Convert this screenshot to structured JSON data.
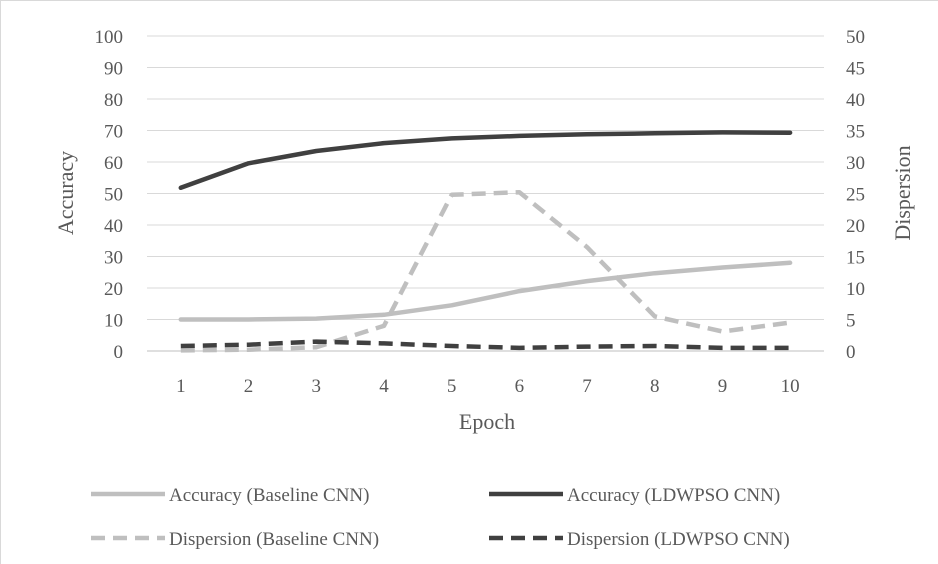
{
  "chart_data": {
    "type": "line",
    "title": "",
    "xlabel": "Epoch",
    "ylabel": "Accuracy",
    "y2label": "Dispersion",
    "x": [
      1,
      2,
      3,
      4,
      5,
      6,
      7,
      8,
      9,
      10
    ],
    "x_tick_labels": [
      "1",
      "2",
      "3",
      "4",
      "5",
      "6",
      "7",
      "8",
      "9",
      "10"
    ],
    "ylim": [
      0,
      100
    ],
    "y_ticks": [
      "0",
      "10",
      "20",
      "30",
      "40",
      "50",
      "60",
      "70",
      "80",
      "90",
      "100"
    ],
    "y2lim": [
      0,
      50
    ],
    "y2_ticks": [
      "0",
      "5",
      "10",
      "15",
      "20",
      "25",
      "30",
      "35",
      "40",
      "45",
      "50"
    ],
    "grid": true,
    "legend_position": "bottom",
    "series": [
      {
        "name": "Accuracy (Baseline CNN)",
        "axis": "left",
        "style": "solid",
        "color": "#bfbfbf",
        "values": [
          10,
          10,
          10.3,
          11.5,
          14.5,
          19,
          22.2,
          24.7,
          26.5,
          28
        ]
      },
      {
        "name": "Accuracy (LDWPSO CNN)",
        "axis": "left",
        "style": "solid",
        "color": "#404040",
        "values": [
          51.8,
          59.6,
          63.5,
          66,
          67.5,
          68.3,
          68.8,
          69.1,
          69.4,
          69.3
        ]
      },
      {
        "name": "Dispersion (Baseline CNN)",
        "axis": "right",
        "style": "dashed",
        "color": "#bfbfbf",
        "values": [
          0.1,
          0.2,
          0.6,
          4,
          24.8,
          25.2,
          16.5,
          5.5,
          3.1,
          4.5
        ]
      },
      {
        "name": "Dispersion (LDWPSO CNN)",
        "axis": "right",
        "style": "dashed",
        "color": "#404040",
        "values": [
          0.8,
          1,
          1.5,
          1.2,
          0.8,
          0.5,
          0.7,
          0.8,
          0.5,
          0.5
        ]
      }
    ]
  }
}
